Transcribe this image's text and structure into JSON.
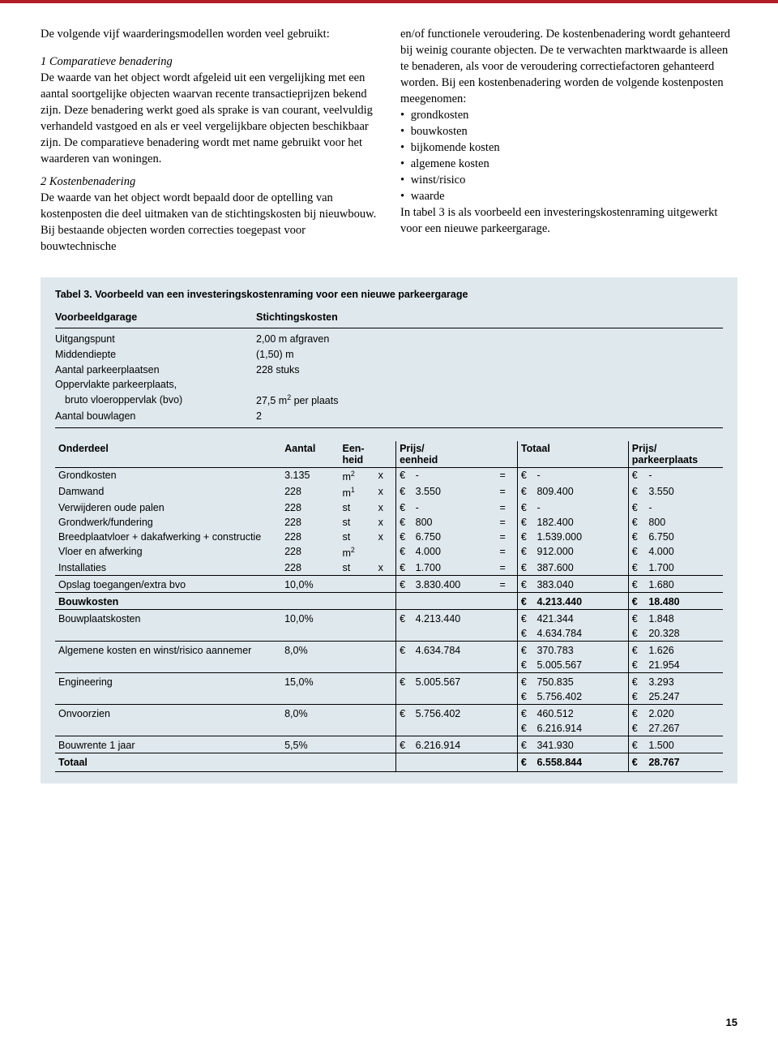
{
  "colors": {
    "accent_red": "#b21e28",
    "table_bg": "#dfe8ed",
    "text": "#000000"
  },
  "fonts": {
    "body_family": "Georgia",
    "table_family": "Arial",
    "body_size_pt": 11,
    "table_size_pt": 9
  },
  "body": {
    "left": {
      "intro": "De volgende vijf waarderingsmodellen worden veel gebruikt:",
      "s1_head": "1 Comparatieve benadering",
      "s1_body": "De waarde van het object wordt afgeleid uit een vergelijking met een aantal soortgelijke objecten waarvan recente transactieprijzen bekend zijn. Deze benadering werkt goed als sprake is van courant, veelvuldig verhandeld vastgoed en als er veel vergelijkbare objecten beschikbaar zijn. De comparatieve benadering wordt met name gebruikt voor het waarderen van woningen.",
      "s2_head": "2 Kostenbenadering",
      "s2_body": "De waarde van het object wordt bepaald door de optelling van kostenposten die deel uitmaken van de stichtingskosten bij nieuwbouw. Bij bestaande objecten worden correcties toegepast voor bouwtechnische"
    },
    "right": {
      "p1": "en/of functionele veroudering. De kostenbenadering wordt gehanteerd bij weinig courante objecten. De te verwachten marktwaarde is alleen te benaderen, als voor de veroudering correctiefactoren gehanteerd worden. Bij een kostenbenadering worden de volgende kostenposten meegenomen:",
      "bullets": [
        "grondkosten",
        "bouwkosten",
        "bijkomende kosten",
        "algemene kosten",
        "winst/risico",
        "waarde"
      ],
      "p2": "In tabel 3 is als voorbeeld een investeringskostenraming uitgewerkt voor een nieuwe parkeergarage."
    }
  },
  "table": {
    "title": "Tabel 3. Voorbeeld van een investeringskostenraming voor een nieuwe parkeergarage",
    "sub_left": "Voorbeeldgarage",
    "sub_right": "Stichtingskosten",
    "assumptions": [
      {
        "label": "Uitgangspunt",
        "value": "2,00 m afgraven"
      },
      {
        "label": "Middendiepte",
        "value": "(1,50) m"
      },
      {
        "label": "Aantal parkeerplaatsen",
        "value": "228 stuks"
      },
      {
        "label": "Oppervlakte parkeerplaats,",
        "value": ""
      },
      {
        "label_indent": "bruto vloeroppervlak (bvo)",
        "value_html": "27,5 m² per plaats"
      },
      {
        "label": "Aantal bouwlagen",
        "value": "2"
      }
    ],
    "headers": {
      "onderdeel": "Onderdeel",
      "aantal": "Aantal",
      "eenheid": "Een-\nheid",
      "prijs": "Prijs/\neenheid",
      "totaal": "Totaal",
      "pp": "Prijs/\nparkeerplaats"
    },
    "rows": [
      {
        "o": "Grondkosten",
        "a": "3.135",
        "e": "m²",
        "op": "x",
        "p": "-",
        "t": "-",
        "pp": "-"
      },
      {
        "o": "Damwand",
        "a": "228",
        "e": "m¹",
        "op": "x",
        "p": "3.550",
        "t": "809.400",
        "pp": "3.550"
      },
      {
        "o": "Verwijderen oude palen",
        "a": "228",
        "e": "st",
        "op": "x",
        "p": "-",
        "t": "-",
        "pp": "-"
      },
      {
        "o": "Grondwerk/fundering",
        "a": "228",
        "e": "st",
        "op": "x",
        "p": "800",
        "t": "182.400",
        "pp": "800"
      },
      {
        "o": "Breedplaatvloer + dakafwerking + constructie",
        "a": "228",
        "e": "st",
        "op": "x",
        "p": "6.750",
        "t": "1.539.000",
        "pp": "6.750"
      },
      {
        "o": "Vloer en afwerking",
        "a": "228",
        "e": "m²",
        "op": "",
        "p": "4.000",
        "t": "912.000",
        "pp": "4.000"
      },
      {
        "o": "Installaties",
        "a": "228",
        "e": "st",
        "op": "x",
        "p": "1.700",
        "t": "387.600",
        "pp": "1.700"
      }
    ],
    "opslag": {
      "o": "Opslag toegangen/extra bvo",
      "a": "10,0%",
      "p": "3.830.400",
      "t": "383.040",
      "pp": "1.680"
    },
    "bouwkosten": {
      "o": "Bouwkosten",
      "t": "4.213.440",
      "pp": "18.480"
    },
    "extras": [
      {
        "o": "Bouwplaatskosten",
        "a": "10,0%",
        "p": "4.213.440",
        "t": "421.344",
        "t2": "4.634.784",
        "pp": "1.848",
        "pp2": "20.328"
      },
      {
        "o": "Algemene kosten en winst/risico aannemer",
        "a": "8,0%",
        "p": "4.634.784",
        "t": "370.783",
        "t2": "5.005.567",
        "pp": "1.626",
        "pp2": "21.954"
      },
      {
        "o": "Engineering",
        "a": "15,0%",
        "p": "5.005.567",
        "t": "750.835",
        "t2": "5.756.402",
        "pp": "3.293",
        "pp2": "25.247"
      },
      {
        "o": "Onvoorzien",
        "a": "8,0%",
        "p": "5.756.402",
        "t": "460.512",
        "t2": "6.216.914",
        "pp": "2.020",
        "pp2": "27.267"
      },
      {
        "o": "Bouwrente 1 jaar",
        "a": "5,5%",
        "p": "6.216.914",
        "t": "341.930",
        "pp": "1.500"
      }
    ],
    "totaal": {
      "o": "Totaal",
      "t": "6.558.844",
      "pp": "28.767"
    }
  },
  "page_number": "15"
}
